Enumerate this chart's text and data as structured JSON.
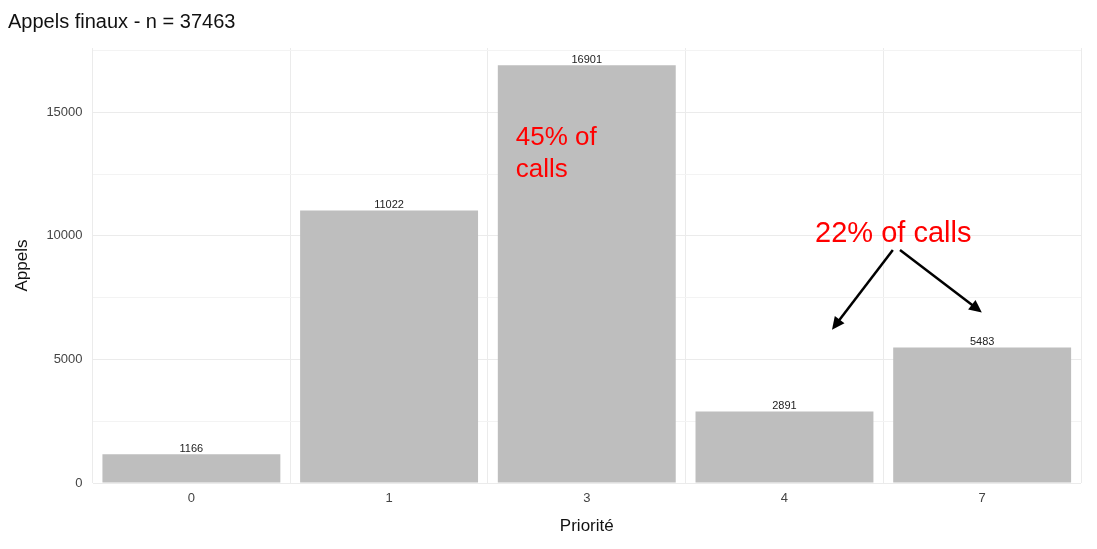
{
  "chart_data": {
    "type": "bar",
    "title": "Appels finaux - n = 37463",
    "xlabel": "Priorité",
    "ylabel": "Appels",
    "categories": [
      "0",
      "1",
      "3",
      "4",
      "7"
    ],
    "values": [
      1166,
      11022,
      16901,
      2891,
      5483
    ],
    "color": "#bebebe",
    "ylim": [
      0,
      17600
    ],
    "yticks": [
      0,
      {
        "value": 2500,
        "label": null
      },
      5000,
      {
        "value": 7500,
        "label": null
      },
      10000,
      {
        "value": 12500,
        "label": null
      },
      15000,
      {
        "value": 17500,
        "label": null
      }
    ],
    "grid": true,
    "data_labels": true,
    "annotations": [
      "45% of calls",
      "22% of calls"
    ]
  }
}
